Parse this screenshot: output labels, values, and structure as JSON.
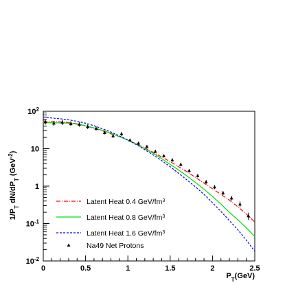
{
  "chart_data": {
    "type": "line",
    "title": "",
    "xlabel": "P_T(GeV)",
    "ylabel": "1/P_T dN/dP_T (GeV^-2)",
    "xlim": [
      0,
      2.5
    ],
    "ylim": [
      0.01,
      100
    ],
    "y_scale": "log",
    "grid": false,
    "legend_position": "bottom-left",
    "x_ticks": [
      {
        "value": 0,
        "label": "0"
      },
      {
        "value": 0.5,
        "label": "0.5"
      },
      {
        "value": 1,
        "label": "1"
      },
      {
        "value": 1.5,
        "label": "1.5"
      },
      {
        "value": 2,
        "label": "2"
      },
      {
        "value": 2.5,
        "label": "2.5"
      }
    ],
    "y_ticks": [
      {
        "value": 0.01,
        "base": "10",
        "exp": "-2"
      },
      {
        "value": 0.1,
        "base": "10",
        "exp": "-1"
      },
      {
        "value": 1,
        "base": "1",
        "exp": ""
      },
      {
        "value": 10,
        "base": "10",
        "exp": ""
      },
      {
        "value": 100,
        "base": "10",
        "exp": "2"
      }
    ],
    "x": [
      0,
      0.1,
      0.2,
      0.3,
      0.4,
      0.5,
      0.6,
      0.7,
      0.8,
      0.9,
      1.0,
      1.1,
      1.2,
      1.3,
      1.4,
      1.5,
      1.6,
      1.7,
      1.8,
      1.9,
      2.0,
      2.1,
      2.2,
      2.3,
      2.4,
      2.5
    ],
    "series": [
      {
        "name": "Latent Heat 0.4 GeV/fm^3",
        "legend_main": "Latent Heat 0.4 GeV/fm",
        "legend_sup": "3",
        "color": "#ff0000",
        "dash": "6,2,1,2",
        "values": [
          55,
          53,
          52,
          50,
          46,
          41,
          35,
          30,
          25,
          21,
          17,
          13.5,
          10.5,
          8.0,
          6.0,
          4.5,
          3.3,
          2.4,
          1.7,
          1.2,
          0.85,
          0.6,
          0.42,
          0.28,
          0.18,
          0.11
        ]
      },
      {
        "name": "Latent Heat 0.8 GeV/fm^3",
        "legend_main": "Latent Heat 0.8 GeV/fm",
        "legend_sup": "3",
        "color": "#00dd00",
        "dash": "",
        "values": [
          50,
          49,
          49,
          48,
          45,
          41,
          36,
          31,
          26,
          21,
          17,
          13.2,
          10.0,
          7.5,
          5.4,
          3.8,
          2.7,
          1.85,
          1.25,
          0.82,
          0.53,
          0.33,
          0.2,
          0.125,
          0.077,
          0.045
        ]
      },
      {
        "name": "Latent Heat 1.6 GeV/fm^3",
        "legend_main": "Latent Heat 1.6 GeV/fm",
        "legend_sup": "3",
        "color": "#0000ff",
        "dash": "3,2",
        "values": [
          70,
          66,
          63,
          59,
          54,
          48,
          41,
          34,
          28,
          22,
          17,
          12.8,
          9.4,
          6.8,
          4.8,
          3.3,
          2.2,
          1.45,
          0.95,
          0.6,
          0.36,
          0.21,
          0.12,
          0.068,
          0.036,
          0.018
        ]
      }
    ],
    "markers": {
      "name": "Na49 Net Protons",
      "color": "#000000",
      "x": [
        0.025,
        0.125,
        0.225,
        0.325,
        0.425,
        0.525,
        0.625,
        0.725,
        0.825,
        0.925,
        1.025,
        1.125,
        1.225,
        1.325,
        1.425,
        1.525,
        1.625,
        1.725,
        1.825,
        1.925,
        2.025,
        2.125,
        2.225,
        2.325,
        2.425
      ],
      "y": [
        52,
        48,
        51,
        47,
        45,
        39,
        35,
        27,
        22,
        25,
        17,
        14,
        11.5,
        8.5,
        6.5,
        5.0,
        3.8,
        2.6,
        1.9,
        1.3,
        0.95,
        0.66,
        0.48,
        0.33,
        0.16
      ],
      "err_low": [
        44,
        41,
        43,
        40,
        38.5,
        33.5,
        30.5,
        24,
        19.5,
        22,
        15.5,
        12.7,
        10.4,
        7.7,
        5.9,
        4.5,
        3.4,
        2.35,
        1.7,
        1.15,
        0.84,
        0.58,
        0.41,
        0.27,
        0.125
      ],
      "err_high": [
        60,
        55,
        59,
        54,
        51.5,
        44.5,
        39.5,
        30,
        24.5,
        28,
        18.5,
        15.3,
        12.6,
        9.3,
        7.1,
        5.5,
        4.2,
        2.85,
        2.1,
        1.45,
        1.06,
        0.74,
        0.55,
        0.39,
        0.195
      ]
    }
  }
}
